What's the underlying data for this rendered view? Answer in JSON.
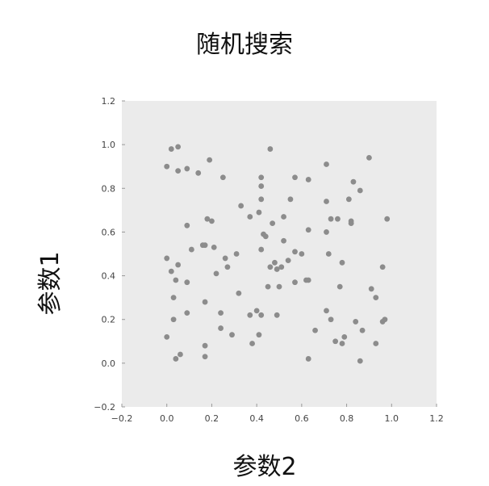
{
  "chart_data": {
    "type": "scatter",
    "title": "随机搜索",
    "xlabel": "参数2",
    "ylabel": "参数1",
    "xlim": [
      -0.2,
      1.2
    ],
    "ylim": [
      -0.2,
      1.2
    ],
    "xticks": [
      "−0.2",
      "0.0",
      "0.2",
      "0.4",
      "0.6",
      "0.8",
      "1.0",
      "1.2"
    ],
    "yticks": [
      "−0.2",
      "0.0",
      "0.2",
      "0.4",
      "0.6",
      "0.8",
      "1.0",
      "1.2"
    ],
    "grid": false,
    "background": "#ebebeb",
    "point_color": "#8c8c8c",
    "series": [
      {
        "points": [
          [
            0.02,
            0.98
          ],
          [
            0.05,
            0.99
          ],
          [
            0.0,
            0.9
          ],
          [
            0.05,
            0.88
          ],
          [
            0.09,
            0.89
          ],
          [
            0.14,
            0.87
          ],
          [
            0.19,
            0.93
          ],
          [
            0.25,
            0.85
          ],
          [
            0.46,
            0.98
          ],
          [
            0.9,
            0.94
          ],
          [
            0.42,
            0.81
          ],
          [
            0.42,
            0.85
          ],
          [
            0.57,
            0.85
          ],
          [
            0.63,
            0.84
          ],
          [
            0.71,
            0.91
          ],
          [
            0.83,
            0.83
          ],
          [
            0.86,
            0.79
          ],
          [
            0.42,
            0.75
          ],
          [
            0.55,
            0.75
          ],
          [
            0.71,
            0.74
          ],
          [
            0.81,
            0.75
          ],
          [
            0.33,
            0.72
          ],
          [
            0.37,
            0.67
          ],
          [
            0.41,
            0.69
          ],
          [
            0.52,
            0.67
          ],
          [
            0.73,
            0.66
          ],
          [
            0.76,
            0.66
          ],
          [
            0.82,
            0.64
          ],
          [
            0.98,
            0.66
          ],
          [
            0.18,
            0.66
          ],
          [
            0.2,
            0.65
          ],
          [
            0.09,
            0.63
          ],
          [
            0.47,
            0.64
          ],
          [
            0.63,
            0.61
          ],
          [
            0.71,
            0.6
          ],
          [
            0.82,
            0.65
          ],
          [
            0.43,
            0.59
          ],
          [
            0.44,
            0.58
          ],
          [
            0.52,
            0.56
          ],
          [
            0.11,
            0.52
          ],
          [
            0.16,
            0.54
          ],
          [
            0.17,
            0.54
          ],
          [
            0.21,
            0.53
          ],
          [
            0.31,
            0.5
          ],
          [
            0.42,
            0.52
          ],
          [
            0.57,
            0.51
          ],
          [
            0.6,
            0.5
          ],
          [
            0.72,
            0.5
          ],
          [
            0.78,
            0.46
          ],
          [
            0.0,
            0.48
          ],
          [
            0.05,
            0.45
          ],
          [
            0.26,
            0.48
          ],
          [
            0.46,
            0.44
          ],
          [
            0.48,
            0.46
          ],
          [
            0.49,
            0.43
          ],
          [
            0.51,
            0.44
          ],
          [
            0.54,
            0.47
          ],
          [
            0.96,
            0.44
          ],
          [
            0.02,
            0.42
          ],
          [
            0.04,
            0.38
          ],
          [
            0.09,
            0.37
          ],
          [
            0.22,
            0.41
          ],
          [
            0.27,
            0.44
          ],
          [
            0.57,
            0.37
          ],
          [
            0.62,
            0.38
          ],
          [
            0.63,
            0.38
          ],
          [
            0.45,
            0.35
          ],
          [
            0.5,
            0.35
          ],
          [
            0.77,
            0.35
          ],
          [
            0.91,
            0.34
          ],
          [
            0.03,
            0.3
          ],
          [
            0.32,
            0.32
          ],
          [
            0.17,
            0.28
          ],
          [
            0.93,
            0.3
          ],
          [
            0.09,
            0.23
          ],
          [
            0.24,
            0.23
          ],
          [
            0.37,
            0.22
          ],
          [
            0.4,
            0.24
          ],
          [
            0.42,
            0.22
          ],
          [
            0.49,
            0.22
          ],
          [
            0.71,
            0.24
          ],
          [
            0.73,
            0.2
          ],
          [
            0.79,
            0.12
          ],
          [
            0.03,
            0.2
          ],
          [
            0.24,
            0.16
          ],
          [
            0.29,
            0.13
          ],
          [
            0.41,
            0.13
          ],
          [
            0.66,
            0.15
          ],
          [
            0.84,
            0.19
          ],
          [
            0.87,
            0.15
          ],
          [
            0.96,
            0.19
          ],
          [
            0.0,
            0.12
          ],
          [
            0.38,
            0.09
          ],
          [
            0.75,
            0.1
          ],
          [
            0.78,
            0.09
          ],
          [
            0.93,
            0.09
          ],
          [
            0.17,
            0.08
          ],
          [
            0.06,
            0.04
          ],
          [
            0.04,
            0.02
          ],
          [
            0.17,
            0.03
          ],
          [
            0.63,
            0.02
          ],
          [
            0.86,
            0.01
          ],
          [
            0.97,
            0.2
          ]
        ]
      }
    ]
  }
}
